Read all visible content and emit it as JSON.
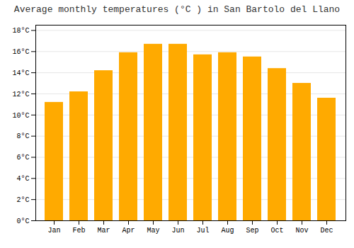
{
  "chart_data": {
    "type": "bar",
    "title": "Average monthly temperatures (°C ) in San Bartolo del Llano",
    "categories": [
      "Jan",
      "Feb",
      "Mar",
      "Apr",
      "May",
      "Jun",
      "Jul",
      "Aug",
      "Sep",
      "Oct",
      "Nov",
      "Dec"
    ],
    "values": [
      11.2,
      12.2,
      14.2,
      15.9,
      16.7,
      16.7,
      15.7,
      15.9,
      15.5,
      14.4,
      13.0,
      11.6
    ],
    "color": "#FFAA00",
    "ylim": [
      0,
      18.5
    ],
    "yticks": [
      {
        "value": 0,
        "label": "0°C"
      },
      {
        "value": 2,
        "label": "2°C"
      },
      {
        "value": 4,
        "label": "4°C"
      },
      {
        "value": 6,
        "label": "6°C"
      },
      {
        "value": 8,
        "label": "8°C"
      },
      {
        "value": 10,
        "label": "10°C"
      },
      {
        "value": 12,
        "label": "12°C"
      },
      {
        "value": 14,
        "label": "14°C"
      },
      {
        "value": 16,
        "label": "16°C"
      },
      {
        "value": 18,
        "label": "18°C"
      }
    ],
    "grid": true
  }
}
